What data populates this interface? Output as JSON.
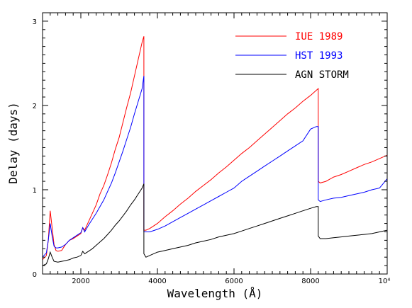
{
  "chart_data": {
    "type": "line",
    "xlabel": "Wavelength (Å)",
    "ylabel": "Delay (days)",
    "xlim": [
      1000,
      10000
    ],
    "ylim": [
      0,
      3.1
    ],
    "x_ticks": [
      {
        "value": 2000,
        "label": "2000"
      },
      {
        "value": 4000,
        "label": "4000"
      },
      {
        "value": 6000,
        "label": "6000"
      },
      {
        "value": 8000,
        "label": "8000"
      },
      {
        "value": 10000,
        "label": "10⁴"
      }
    ],
    "y_ticks": [
      {
        "value": 0,
        "label": "0"
      },
      {
        "value": 1,
        "label": "1"
      },
      {
        "value": 2,
        "label": "2"
      },
      {
        "value": 3,
        "label": "3"
      }
    ],
    "legend_position": "top-right",
    "grid": false,
    "series": [
      {
        "name": "IUE 1989",
        "color": "#ff0000",
        "x": [
          1000,
          1100,
          1150,
          1200,
          1250,
          1300,
          1350,
          1400,
          1500,
          1600,
          1700,
          1800,
          1900,
          2000,
          2050,
          2100,
          2200,
          2300,
          2400,
          2500,
          2600,
          2700,
          2800,
          2900,
          3000,
          3100,
          3200,
          3300,
          3400,
          3500,
          3600,
          3646,
          3646,
          3700,
          3800,
          4000,
          4200,
          4400,
          4600,
          4800,
          5000,
          5200,
          5400,
          5600,
          5800,
          6000,
          6200,
          6400,
          6600,
          6800,
          7000,
          7200,
          7400,
          7600,
          7800,
          8000,
          8150,
          8200,
          8200,
          8250,
          8400,
          8600,
          8800,
          9000,
          9200,
          9400,
          9600,
          9800,
          10000
        ],
        "y": [
          0.17,
          0.22,
          0.4,
          0.75,
          0.55,
          0.35,
          0.28,
          0.27,
          0.28,
          0.35,
          0.4,
          0.42,
          0.45,
          0.48,
          0.55,
          0.52,
          0.62,
          0.72,
          0.82,
          0.95,
          1.05,
          1.18,
          1.32,
          1.48,
          1.62,
          1.8,
          1.98,
          2.15,
          2.35,
          2.55,
          2.75,
          2.82,
          0.52,
          0.52,
          0.54,
          0.6,
          0.68,
          0.75,
          0.83,
          0.9,
          0.98,
          1.05,
          1.12,
          1.2,
          1.27,
          1.35,
          1.43,
          1.5,
          1.58,
          1.66,
          1.74,
          1.82,
          1.9,
          1.97,
          2.05,
          2.12,
          2.18,
          2.2,
          1.1,
          1.08,
          1.1,
          1.15,
          1.18,
          1.22,
          1.26,
          1.3,
          1.33,
          1.37,
          1.41
        ]
      },
      {
        "name": "HST 1993",
        "color": "#0000ff",
        "x": [
          1000,
          1100,
          1150,
          1200,
          1250,
          1300,
          1350,
          1400,
          1500,
          1600,
          1700,
          1800,
          1900,
          2000,
          2050,
          2100,
          2200,
          2300,
          2400,
          2500,
          2600,
          2700,
          2800,
          2900,
          3000,
          3100,
          3200,
          3300,
          3400,
          3500,
          3600,
          3646,
          3646,
          3700,
          3800,
          4000,
          4200,
          4400,
          4600,
          4800,
          5000,
          5200,
          5400,
          5600,
          5800,
          6000,
          6200,
          6400,
          6600,
          6800,
          7000,
          7200,
          7400,
          7600,
          7800,
          8000,
          8150,
          8200,
          8200,
          8250,
          8400,
          8600,
          8800,
          9000,
          9200,
          9400,
          9600,
          9800,
          10000
        ],
        "y": [
          0.2,
          0.25,
          0.4,
          0.6,
          0.45,
          0.33,
          0.31,
          0.31,
          0.32,
          0.35,
          0.4,
          0.43,
          0.46,
          0.49,
          0.55,
          0.5,
          0.58,
          0.65,
          0.72,
          0.8,
          0.88,
          0.98,
          1.08,
          1.2,
          1.33,
          1.46,
          1.6,
          1.74,
          1.9,
          2.05,
          2.2,
          2.35,
          0.5,
          0.5,
          0.5,
          0.53,
          0.57,
          0.62,
          0.67,
          0.72,
          0.77,
          0.82,
          0.87,
          0.92,
          0.97,
          1.02,
          1.1,
          1.16,
          1.22,
          1.28,
          1.34,
          1.4,
          1.46,
          1.52,
          1.58,
          1.72,
          1.75,
          1.75,
          0.88,
          0.86,
          0.88,
          0.9,
          0.91,
          0.93,
          0.95,
          0.97,
          1.0,
          1.02,
          1.13
        ]
      },
      {
        "name": "AGN STORM",
        "color": "#000000",
        "x": [
          1000,
          1100,
          1150,
          1200,
          1250,
          1300,
          1400,
          1500,
          1600,
          1700,
          1800,
          1900,
          2000,
          2050,
          2100,
          2200,
          2300,
          2400,
          2500,
          2600,
          2700,
          2800,
          2900,
          3000,
          3100,
          3200,
          3300,
          3400,
          3500,
          3600,
          3646,
          3646,
          3700,
          3800,
          4000,
          4200,
          4400,
          4600,
          4800,
          5000,
          5200,
          5400,
          5600,
          5800,
          6000,
          6200,
          6400,
          6600,
          6800,
          7000,
          7200,
          7400,
          7600,
          7800,
          8000,
          8150,
          8200,
          8200,
          8250,
          8400,
          8600,
          8800,
          9000,
          9200,
          9400,
          9600,
          9800,
          10000
        ],
        "y": [
          0.1,
          0.12,
          0.18,
          0.26,
          0.2,
          0.15,
          0.14,
          0.15,
          0.16,
          0.17,
          0.19,
          0.2,
          0.22,
          0.27,
          0.24,
          0.27,
          0.3,
          0.34,
          0.38,
          0.42,
          0.47,
          0.52,
          0.58,
          0.63,
          0.69,
          0.75,
          0.82,
          0.88,
          0.95,
          1.02,
          1.07,
          0.24,
          0.2,
          0.22,
          0.26,
          0.28,
          0.3,
          0.32,
          0.34,
          0.37,
          0.39,
          0.41,
          0.44,
          0.46,
          0.48,
          0.51,
          0.54,
          0.57,
          0.6,
          0.63,
          0.66,
          0.69,
          0.72,
          0.75,
          0.78,
          0.8,
          0.8,
          0.45,
          0.42,
          0.42,
          0.43,
          0.44,
          0.45,
          0.46,
          0.47,
          0.48,
          0.5,
          0.52
        ]
      }
    ]
  }
}
